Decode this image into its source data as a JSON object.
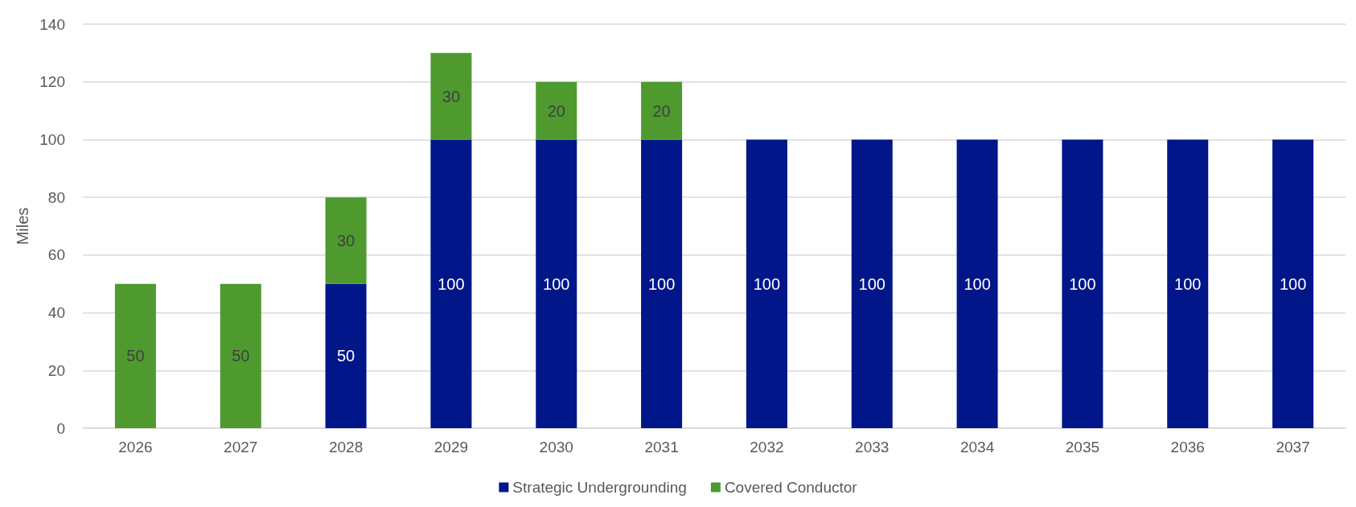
{
  "chart_data": {
    "type": "bar",
    "stacked": true,
    "ylabel": "Miles",
    "categories": [
      "2026",
      "2027",
      "2028",
      "2029",
      "2030",
      "2031",
      "2032",
      "2033",
      "2034",
      "2035",
      "2036",
      "2037"
    ],
    "series": [
      {
        "name": "Strategic Undergrounding",
        "color": "#001689",
        "values": [
          null,
          null,
          50,
          100,
          100,
          100,
          100,
          100,
          100,
          100,
          100,
          100
        ]
      },
      {
        "name": "Covered Conductor",
        "color": "#4e9a2f",
        "values": [
          50,
          50,
          30,
          30,
          20,
          20,
          null,
          null,
          null,
          null,
          null,
          null
        ]
      }
    ],
    "ylim": [
      0,
      140
    ],
    "yticks": [
      0,
      20,
      40,
      60,
      80,
      100,
      120,
      140
    ],
    "grid": "y",
    "legend": "bottom",
    "data_labels": true
  }
}
